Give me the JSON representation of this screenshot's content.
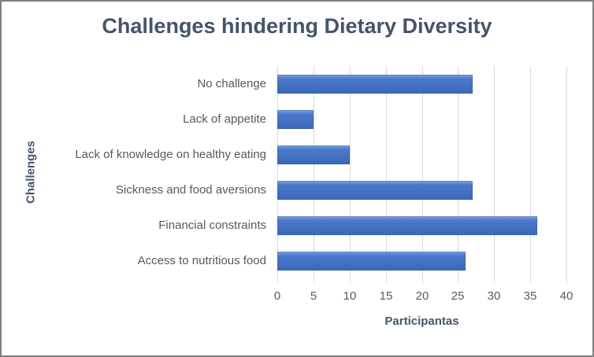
{
  "frame": {
    "background": "#ffffff",
    "border_color": "#7f7f7f"
  },
  "chart_data": {
    "type": "bar",
    "orientation": "horizontal",
    "title": "Challenges hindering Dietary Diversity",
    "xlabel": "Participantas",
    "ylabel": "Challenges",
    "categories": [
      "No challenge",
      "Lack of appetite",
      "Lack of knowledge on healthy eating",
      "Sickness and food aversions",
      "Financial constraints",
      "Access to nutritious food"
    ],
    "values": [
      27,
      5,
      10,
      27,
      36,
      26
    ],
    "xlim": [
      0,
      40
    ],
    "xticks": [
      0,
      5,
      10,
      15,
      20,
      25,
      30,
      35,
      40
    ],
    "grid": true,
    "legend": "none",
    "colors": {
      "bar": "#4472c4",
      "bar_gradient_top": "#7da3e0",
      "bar_gradient_bottom": "#3b66b8",
      "title": "#44546a",
      "axis_title": "#44546a",
      "tick_label": "#595959",
      "category_label": "#595959",
      "gridline": "#d9d9d9"
    }
  }
}
